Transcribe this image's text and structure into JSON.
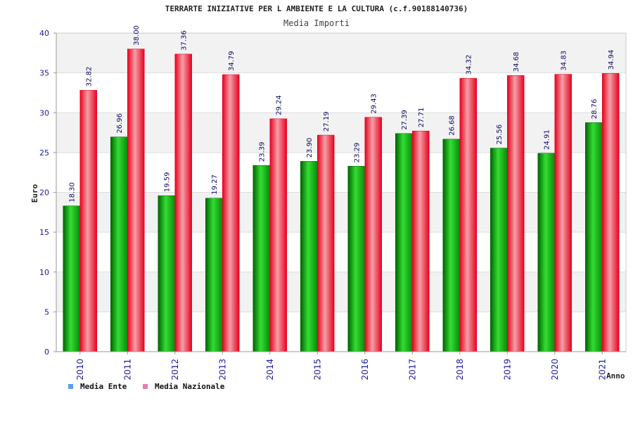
{
  "chart_data": {
    "type": "bar",
    "title": "TERRARTE INIZIATIVE PER L AMBIENTE E LA CULTURA (c.f.90188140736)",
    "subtitle": "Media Importi",
    "xlabel": "Anno",
    "ylabel": "Euro",
    "ylim": [
      0,
      40
    ],
    "yticks": [
      0,
      5,
      10,
      15,
      20,
      25,
      30,
      35,
      40
    ],
    "categories": [
      "2010",
      "2011",
      "2012",
      "2013",
      "2014",
      "2015",
      "2016",
      "2017",
      "2018",
      "2019",
      "2020",
      "2021"
    ],
    "series": [
      {
        "name": "Media Ente",
        "values": [
          18.3,
          26.96,
          19.59,
          19.27,
          23.39,
          23.9,
          23.29,
          27.39,
          26.68,
          25.56,
          24.91,
          28.76
        ],
        "labels": [
          "18.30",
          "26.96",
          "19.59",
          "19.27",
          "23.39",
          "23.90",
          "23.29",
          "27.39",
          "26.68",
          "25.56",
          "24.91",
          "28.76"
        ]
      },
      {
        "name": "Media Nazionale",
        "values": [
          32.82,
          38.0,
          37.36,
          34.79,
          29.24,
          27.19,
          29.43,
          27.71,
          34.32,
          34.68,
          34.83,
          34.94
        ],
        "labels": [
          "32.82",
          "38.00",
          "37.36",
          "34.79",
          "29.24",
          "27.19",
          "29.43",
          "27.71",
          "34.32",
          "34.68",
          "34.83",
          "34.94"
        ]
      }
    ],
    "grid": true,
    "legend_position": "bottom-left",
    "colors": {
      "ente_dark": "#006400",
      "ente_light": "#33dd33",
      "nazionale_dark": "#e8001c",
      "nazionale_light": "#f2a0a8",
      "legend_ente": "#5aa0f0",
      "legend_nazionale": "#e080b0",
      "band": "#f2f2f2"
    }
  }
}
